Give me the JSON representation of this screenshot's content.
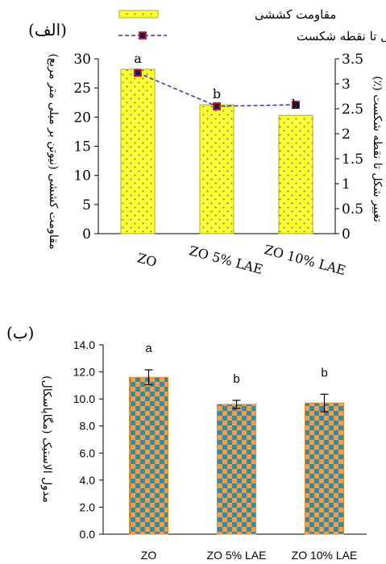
{
  "chart_data": [
    {
      "type": "bar",
      "panel_label": "(الف)",
      "categories": [
        "ZO",
        "ZO 5% LAE",
        "ZO 10% LAE"
      ],
      "series": [
        {
          "name": "مقاومت کششی",
          "type": "bar",
          "axis": "left",
          "values": [
            28.2,
            22.1,
            20.3
          ],
          "significance": [
            "a",
            "b",
            "b"
          ],
          "color": "#ffff33",
          "pattern": "dots"
        },
        {
          "name": "تغییر شکل تا نقطه شکست",
          "type": "line",
          "axis": "right",
          "values": [
            3.22,
            2.55,
            2.58
          ],
          "color": "#3b2db8",
          "marker_color": "#c0202a",
          "line_style": "dashed"
        }
      ],
      "ylabel": "مقاومت کششی (نیوتن بر میلی متر مربع)",
      "y2label": "تغییر شکل تا نقطه شکست (٪)",
      "ylim": [
        0,
        30
      ],
      "y2lim": [
        0,
        3.5
      ],
      "yticks": [
        "0",
        "5",
        "10",
        "15",
        "20",
        "25",
        "30"
      ],
      "y2ticks": [
        "0",
        "0.5",
        "1",
        "1.5",
        "2",
        "2.5",
        "3",
        "3.5"
      ],
      "legend_position": "top",
      "grid": false
    },
    {
      "type": "bar",
      "panel_label": "(ب)",
      "categories": [
        "ZO",
        "ZO 5% LAE",
        "ZO 10% LAE"
      ],
      "series": [
        {
          "values": [
            11.6,
            9.6,
            9.7
          ],
          "error": [
            0.55,
            0.3,
            0.65
          ],
          "significance": [
            "a",
            "b",
            "b"
          ],
          "color": "#f0a050",
          "pattern_color": "#3a8a98",
          "pattern": "checkerboard"
        }
      ],
      "ylabel": "مدول الاستیک (مگاپاسکال)",
      "ylim": [
        0,
        14
      ],
      "yticks": [
        "0.0",
        "2.0",
        "4.0",
        "6.0",
        "8.0",
        "10.0",
        "12.0",
        "14.0"
      ],
      "grid": false
    }
  ]
}
